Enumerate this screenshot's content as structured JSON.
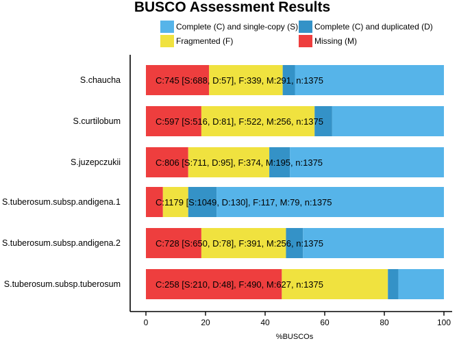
{
  "chart_data": {
    "type": "bar",
    "orientation": "horizontal",
    "stacked": true,
    "title": "BUSCO Assessment Results",
    "xlabel": "%BUSCOs",
    "ylabel": "",
    "xlim": [
      0,
      100
    ],
    "x_ticks": [
      "0",
      "20",
      "40",
      "60",
      "80",
      "100"
    ],
    "legend_position": "top",
    "categories": [
      "S.chaucha",
      "S.curtilobum",
      "S.juzepczukii",
      "S.tuberosum.subsp.andigena.1",
      "S.tuberosum.subsp.andigena.2",
      "S.tuberosum.subsp.tuberosum"
    ],
    "series": [
      {
        "key": "missing",
        "name": "Missing (M)",
        "color": "#ee3e3e",
        "values": [
          21.2,
          18.6,
          14.2,
          5.7,
          18.6,
          45.6
        ]
      },
      {
        "key": "fragmented",
        "name": "Fragmented (F)",
        "color": "#f0e23f",
        "values": [
          24.7,
          38.0,
          27.2,
          8.5,
          28.4,
          35.6
        ]
      },
      {
        "key": "duplicated",
        "name": "Complete (C) and duplicated (D)",
        "color": "#3492c7",
        "values": [
          4.1,
          5.9,
          6.9,
          9.5,
          5.7,
          3.5
        ]
      },
      {
        "key": "single",
        "name": "Complete (C) and single-copy (S)",
        "color": "#56b4e9",
        "values": [
          50.0,
          37.5,
          51.7,
          76.3,
          47.3,
          15.3
        ]
      }
    ],
    "legend_order": [
      "single",
      "duplicated",
      "fragmented",
      "missing"
    ],
    "annotations": [
      "C:745 [S:688, D:57], F:339, M:291, n:1375",
      "C:597 [S:516, D:81], F:522, M:256, n:1375",
      "C:806 [S:711, D:95], F:374, M:195, n:1375",
      "C:1179 [S:1049, D:130], F:117, M:79, n:1375",
      "C:728 [S:650, D:78], F:391, M:256, n:1375",
      "C:258 [S:210, D:48], F:490, M:627, n:1375"
    ]
  }
}
